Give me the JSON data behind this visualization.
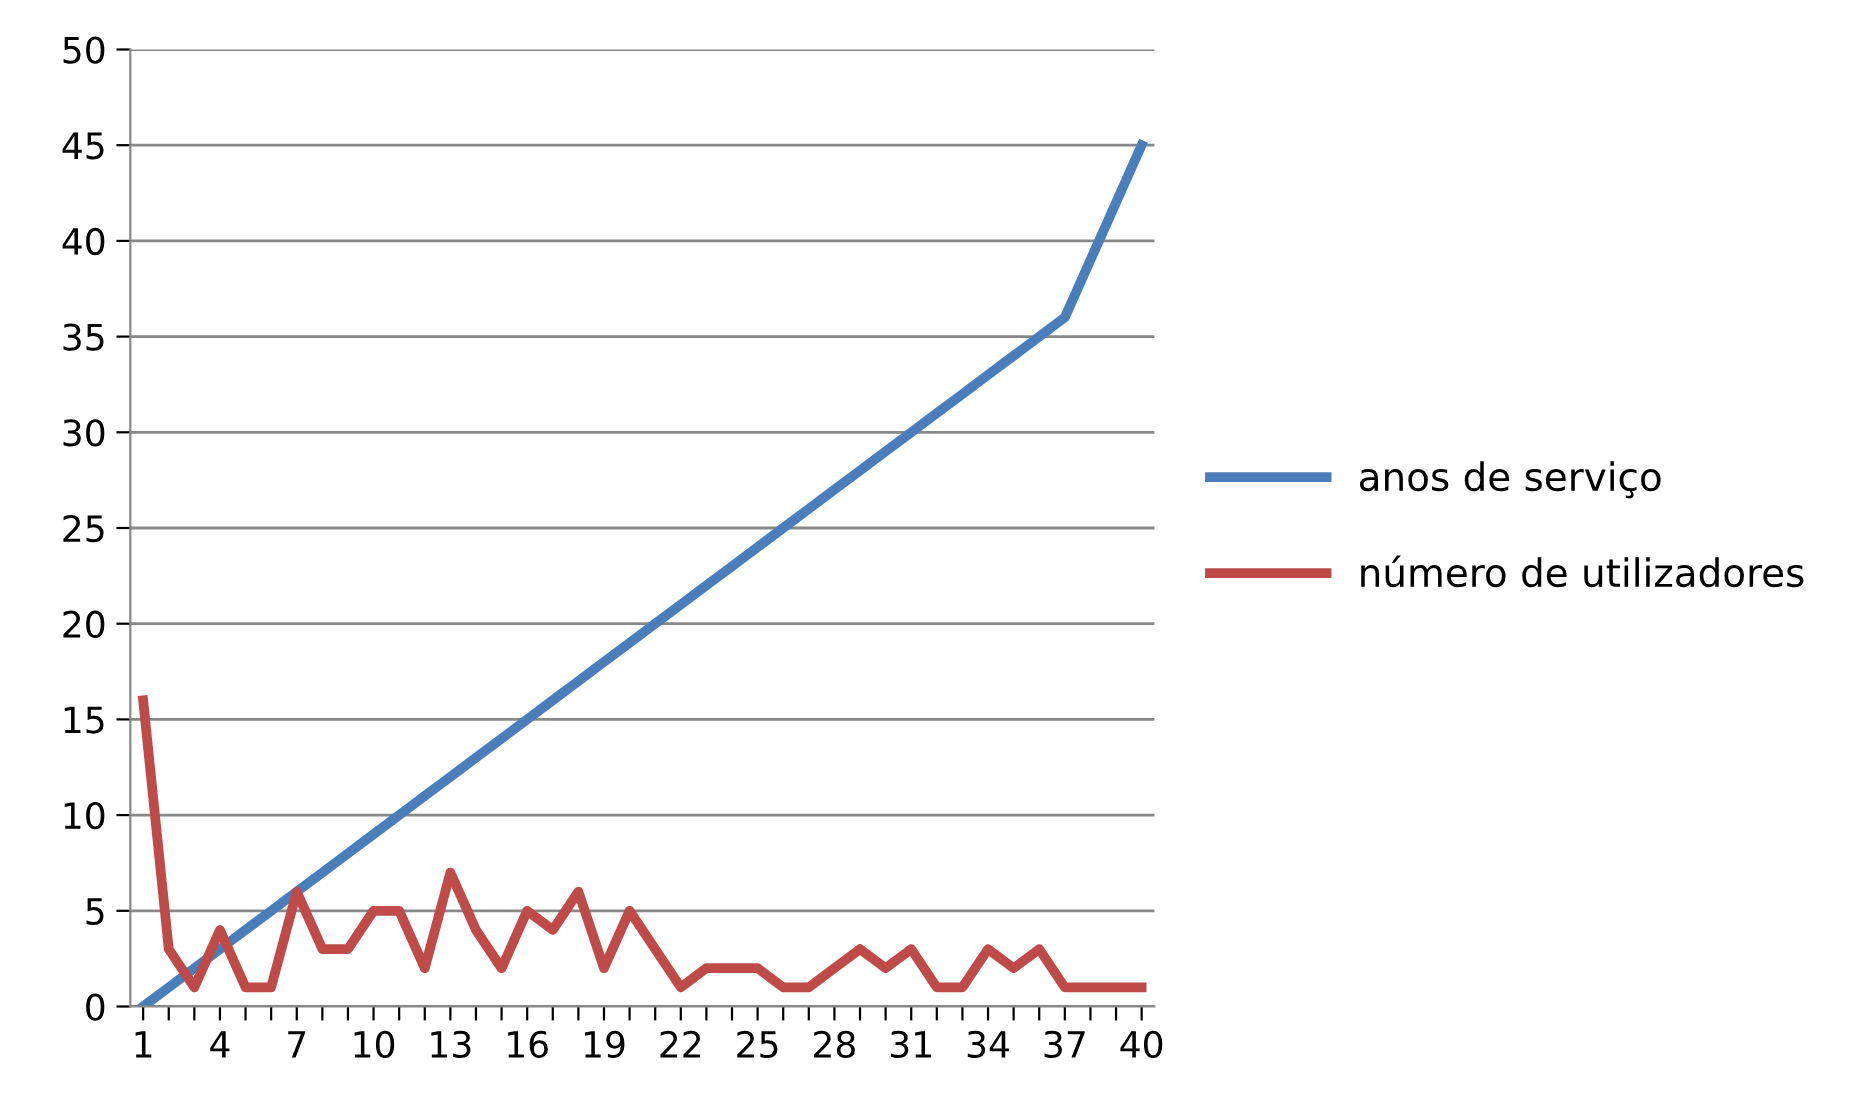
{
  "chart_data": {
    "type": "line",
    "categories": [
      "1",
      null,
      null,
      "4",
      null,
      null,
      "7",
      null,
      null,
      "10",
      null,
      null,
      "13",
      null,
      null,
      "16",
      null,
      null,
      "19",
      null,
      null,
      "22",
      null,
      null,
      "25",
      null,
      null,
      "28",
      null,
      null,
      "31",
      null,
      null,
      "34",
      null,
      null,
      "37",
      null,
      null,
      "40"
    ],
    "series": [
      {
        "name": "anos de serviço",
        "color": "#4a7ebb",
        "values": [
          0,
          1,
          2,
          3,
          4,
          5,
          6,
          7,
          8,
          9,
          10,
          11,
          12,
          13,
          14,
          15,
          16,
          17,
          18,
          19,
          20,
          21,
          22,
          23,
          24,
          25,
          26,
          27,
          28,
          29,
          30,
          31,
          32,
          33,
          34,
          35,
          36,
          39,
          42,
          45
        ]
      },
      {
        "name": "número de utilizadores",
        "color": "#be4b48",
        "values": [
          16,
          3,
          1,
          4,
          1,
          1,
          6,
          3,
          3,
          5,
          5,
          2,
          7,
          4,
          2,
          5,
          4,
          6,
          2,
          5,
          3,
          1,
          2,
          2,
          2,
          1,
          1,
          2,
          3,
          2,
          3,
          1,
          1,
          3,
          2,
          3,
          1,
          1,
          1,
          1
        ]
      }
    ],
    "ylim": [
      0,
      50
    ],
    "yticks": [
      0,
      5,
      10,
      15,
      20,
      25,
      30,
      35,
      40,
      45,
      50
    ],
    "grid": "y",
    "legend": "right",
    "marker": "none",
    "line_style": "solid"
  }
}
